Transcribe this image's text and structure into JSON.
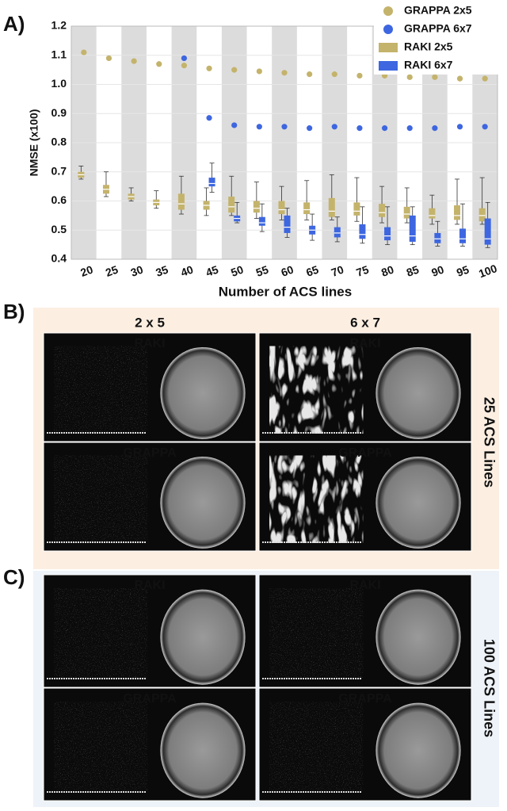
{
  "chart_data": {
    "type": "box",
    "panel_label": "A)",
    "y_label": "NMSE (x100)",
    "x_label": "Number of ACS lines",
    "categories": [
      "20",
      "25",
      "30",
      "35",
      "40",
      "45",
      "50",
      "55",
      "60",
      "65",
      "70",
      "75",
      "80",
      "85",
      "90",
      "95",
      "100"
    ],
    "ylim": [
      0.4,
      1.2
    ],
    "yticks": [
      0.4,
      0.5,
      0.6,
      0.7,
      0.8,
      0.9,
      {
        "value": 1.0,
        "label": "1.0"
      },
      1.1,
      1.2
    ],
    "grid": true,
    "legend": "upper right",
    "series": [
      {
        "name": "GRAPPA 2x5",
        "type": "scatter",
        "color": "#c4b36b",
        "values": [
          1.11,
          1.09,
          1.08,
          1.07,
          1.065,
          1.055,
          1.05,
          1.045,
          1.04,
          1.035,
          1.035,
          1.03,
          1.03,
          1.025,
          1.025,
          1.02,
          1.02
        ]
      },
      {
        "name": "GRAPPA 6x7",
        "type": "scatter",
        "color": "#3d66e0",
        "values": [
          null,
          null,
          null,
          null,
          1.09,
          0.885,
          0.86,
          0.855,
          0.855,
          0.85,
          0.855,
          0.85,
          0.85,
          0.85,
          0.85,
          0.855,
          0.855
        ]
      },
      {
        "name": "RAKI 2x5",
        "type": "box",
        "color": "#c4b36b",
        "median": [
          0.69,
          0.64,
          0.615,
          0.595,
          0.59,
          0.585,
          0.58,
          0.575,
          0.57,
          0.57,
          0.565,
          0.565,
          0.56,
          0.555,
          0.55,
          0.55,
          0.55
        ],
        "q1": [
          0.68,
          0.625,
          0.605,
          0.585,
          0.57,
          0.57,
          0.56,
          0.56,
          0.555,
          0.555,
          0.545,
          0.55,
          0.545,
          0.54,
          0.54,
          0.535,
          0.53
        ],
        "q3": [
          0.7,
          0.655,
          0.625,
          0.605,
          0.625,
          0.6,
          0.615,
          0.6,
          0.6,
          0.595,
          0.61,
          0.595,
          0.59,
          0.58,
          0.575,
          0.585,
          0.575
        ],
        "whisker_low": [
          0.675,
          0.615,
          0.6,
          0.575,
          0.555,
          0.55,
          0.55,
          0.54,
          0.535,
          0.535,
          0.535,
          0.53,
          0.525,
          0.525,
          0.52,
          0.52,
          0.52
        ],
        "whisker_high": [
          0.72,
          0.7,
          0.645,
          0.635,
          0.685,
          0.645,
          0.685,
          0.665,
          0.65,
          0.67,
          0.69,
          0.68,
          0.65,
          0.645,
          0.62,
          0.675,
          0.68
        ]
      },
      {
        "name": "RAKI 6x7",
        "type": "box",
        "color": "#3d66e0",
        "median": [
          null,
          null,
          null,
          null,
          null,
          0.66,
          0.54,
          0.525,
          0.51,
          0.5,
          0.49,
          0.485,
          0.48,
          0.48,
          0.47,
          0.47,
          0.47
        ],
        "q1": [
          null,
          null,
          null,
          null,
          null,
          0.65,
          0.53,
          0.515,
          0.49,
          0.485,
          0.475,
          0.47,
          0.465,
          0.46,
          0.455,
          0.455,
          0.45
        ],
        "q3": [
          null,
          null,
          null,
          null,
          null,
          0.68,
          0.55,
          0.545,
          0.55,
          0.515,
          0.51,
          0.52,
          0.51,
          0.55,
          0.49,
          0.505,
          0.54
        ],
        "whisker_low": [
          null,
          null,
          null,
          null,
          null,
          0.63,
          0.525,
          0.495,
          0.475,
          0.465,
          0.46,
          0.455,
          0.45,
          0.45,
          0.445,
          0.445,
          0.44
        ],
        "whisker_high": [
          null,
          null,
          null,
          null,
          null,
          0.73,
          0.595,
          0.59,
          0.575,
          0.555,
          0.545,
          0.58,
          0.58,
          0.58,
          0.53,
          0.59,
          0.595
        ]
      }
    ]
  },
  "panels": [
    {
      "label": "B)",
      "row_label": "25 ACS Lines",
      "columns": [
        "2 x 5",
        "6 x 7"
      ],
      "images": [
        [
          "RAKI",
          "RAKI"
        ],
        [
          "GRAPPA",
          "GRAPPA"
        ]
      ]
    },
    {
      "label": "C)",
      "row_label": "100 ACS Lines",
      "images": [
        [
          "RAKI",
          "RAKI"
        ],
        [
          "GRAPPA",
          "GRAPPA"
        ]
      ]
    }
  ]
}
